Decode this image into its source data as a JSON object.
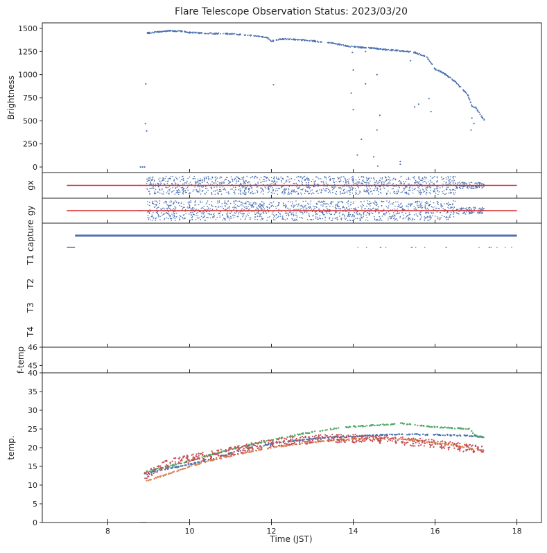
{
  "title": "Flare Telescope Observation Status: 2023/03/20",
  "colors": {
    "blue": "#4c72b0",
    "orange": "#dd8452",
    "green": "#55a868",
    "red": "#c44e52",
    "redline": "#d62728"
  },
  "chart_data": {
    "type": "scatter",
    "xlabel": "Time (JST)",
    "xlim": [
      6.4,
      18.6
    ],
    "xticks": [
      8,
      10,
      12,
      14,
      16,
      18
    ],
    "panels": [
      {
        "id": "brightness",
        "ylabel": "Brightness",
        "ylim": [
          -60,
          1560
        ],
        "yticks": [
          0,
          250,
          500,
          750,
          1000,
          1250,
          1500
        ],
        "series": [
          {
            "color": "blue",
            "points": [
              [
                8.8,
                0
              ],
              [
                8.85,
                0
              ],
              [
                8.9,
                0
              ],
              [
                8.92,
                470
              ],
              [
                8.95,
                390
              ],
              [
                8.93,
                900
              ],
              [
                8.97,
                1450
              ],
              [
                9.2,
                1460
              ],
              [
                9.5,
                1475
              ],
              [
                9.8,
                1470
              ],
              [
                10.0,
                1455
              ],
              [
                10.3,
                1450
              ],
              [
                10.6,
                1445
              ],
              [
                11.0,
                1440
              ],
              [
                11.5,
                1425
              ],
              [
                11.9,
                1400
              ],
              [
                12.0,
                1360
              ],
              [
                12.2,
                1385
              ],
              [
                12.6,
                1380
              ],
              [
                13.0,
                1365
              ],
              [
                13.5,
                1340
              ],
              [
                13.9,
                1305
              ],
              [
                14.2,
                1295
              ],
              [
                14.5,
                1285
              ],
              [
                14.8,
                1270
              ],
              [
                15.2,
                1255
              ],
              [
                15.5,
                1240
              ],
              [
                15.8,
                1190
              ],
              [
                16.0,
                1060
              ],
              [
                16.2,
                1020
              ],
              [
                16.5,
                920
              ],
              [
                16.8,
                780
              ],
              [
                16.9,
                660
              ],
              [
                17.0,
                640
              ],
              [
                17.1,
                570
              ],
              [
                17.2,
                510
              ],
              [
                12.05,
                890
              ],
              [
                14.0,
                1050
              ],
              [
                14.1,
                130
              ],
              [
                14.2,
                300
              ],
              [
                14.3,
                900
              ],
              [
                14.5,
                110
              ],
              [
                14.58,
                1000
              ],
              [
                14.6,
                10
              ],
              [
                14.65,
                560
              ],
              [
                14.58,
                400
              ],
              [
                15.15,
                30
              ],
              [
                15.15,
                60
              ],
              [
                15.4,
                1150
              ],
              [
                15.5,
                650
              ],
              [
                15.6,
                680
              ],
              [
                15.85,
                740
              ],
              [
                15.9,
                600
              ],
              [
                16.9,
                530
              ],
              [
                16.95,
                470
              ],
              [
                16.88,
                400
              ],
              [
                14.0,
                620
              ],
              [
                13.95,
                800
              ],
              [
                13.98,
                1240
              ],
              [
                14.3,
                1250
              ]
            ]
          }
        ]
      },
      {
        "id": "gx",
        "ylabel": "gx",
        "ylim": [
          -1.2,
          1.2
        ],
        "series": [
          {
            "color": "blue",
            "x_range": [
              8.95,
              17.2
            ],
            "spread": 0.85
          },
          {
            "color": "redline",
            "line": [
              [
                7.0,
                0
              ],
              [
                18.0,
                0
              ]
            ]
          }
        ]
      },
      {
        "id": "gy",
        "ylabel": "gy",
        "ylim": [
          -1.2,
          1.2
        ],
        "series": [
          {
            "color": "blue",
            "x_range": [
              8.95,
              17.2
            ],
            "spread": 0.95
          },
          {
            "color": "redline",
            "line": [
              [
                7.0,
                0
              ],
              [
                18.0,
                0
              ]
            ]
          }
        ]
      },
      {
        "id": "status",
        "rows": [
          "capture",
          "T1",
          "T2",
          "T3",
          "T4"
        ],
        "series": [
          {
            "color": "blue",
            "row": "capture",
            "line": [
              [
                7.2,
                18.0
              ]
            ]
          },
          {
            "color": "blue",
            "row": "capture_low",
            "line": [
              [
                7.0,
                7.2
              ]
            ]
          }
        ]
      },
      {
        "id": "ftemp",
        "ylabel": "f-temp",
        "ylim": [
          44.6,
          46.0
        ],
        "yticks": [
          45,
          46
        ]
      },
      {
        "id": "temp",
        "ylabel": "temp.",
        "ylim": [
          0,
          40
        ],
        "yticks": [
          0,
          5,
          10,
          15,
          20,
          25,
          30,
          35,
          40
        ],
        "series": [
          {
            "color": "blue",
            "points": [
              [
                8.9,
                13
              ],
              [
                9.5,
                14.5
              ],
              [
                10,
                15.5
              ],
              [
                10.5,
                16.8
              ],
              [
                11,
                18.5
              ],
              [
                11.5,
                20
              ],
              [
                12,
                21
              ],
              [
                12.5,
                21.8
              ],
              [
                13,
                22.3
              ],
              [
                13.5,
                22.8
              ],
              [
                14,
                23
              ],
              [
                14.5,
                23.3
              ],
              [
                15,
                23.5
              ],
              [
                15.5,
                23.5
              ],
              [
                16,
                23.5
              ],
              [
                16.5,
                23.3
              ],
              [
                17,
                23.1
              ],
              [
                17.2,
                22.8
              ]
            ]
          },
          {
            "color": "orange",
            "points": [
              [
                8.9,
                11
              ],
              [
                9.5,
                13
              ],
              [
                10,
                15
              ],
              [
                10.5,
                16.5
              ],
              [
                11,
                17.8
              ],
              [
                11.5,
                19
              ],
              [
                12,
                20
              ],
              [
                12.5,
                20.8
              ],
              [
                13,
                21.5
              ],
              [
                13.5,
                22
              ],
              [
                14,
                22.3
              ],
              [
                14.5,
                22.5
              ],
              [
                15,
                22.5
              ],
              [
                15.5,
                22
              ],
              [
                16,
                21.3
              ],
              [
                16.5,
                20.5
              ],
              [
                17,
                19.5
              ],
              [
                17.2,
                19.3
              ]
            ]
          },
          {
            "color": "green",
            "points": [
              [
                8.9,
                13.5
              ],
              [
                9.5,
                15
              ],
              [
                10,
                16.5
              ],
              [
                10.5,
                18
              ],
              [
                11,
                19.5
              ],
              [
                11.5,
                20.8
              ],
              [
                12,
                22
              ],
              [
                12.5,
                23.2
              ],
              [
                13,
                24.2
              ],
              [
                13.5,
                25
              ],
              [
                14,
                25.6
              ],
              [
                14.5,
                26
              ],
              [
                15,
                26.3
              ],
              [
                15.2,
                26.5
              ],
              [
                15.5,
                26
              ],
              [
                16,
                25.5
              ],
              [
                16.5,
                25.2
              ],
              [
                16.85,
                25
              ],
              [
                17,
                23
              ],
              [
                17.2,
                22.8
              ]
            ]
          },
          {
            "color": "red",
            "noisy": true,
            "points": [
              [
                8.9,
                12.5
              ],
              [
                9.5,
                16
              ],
              [
                10,
                17
              ],
              [
                10.5,
                18
              ],
              [
                11,
                19
              ],
              [
                11.5,
                20.2
              ],
              [
                12,
                21.2
              ],
              [
                12.5,
                21.8
              ],
              [
                13,
                22.2
              ],
              [
                13.5,
                22.5
              ],
              [
                14,
                22.5
              ],
              [
                14.5,
                22.3
              ],
              [
                15,
                22
              ],
              [
                15.5,
                21.5
              ],
              [
                16,
                21
              ],
              [
                16.5,
                20.3
              ],
              [
                17,
                19.6
              ],
              [
                17.2,
                19.2
              ]
            ]
          }
        ]
      }
    ]
  }
}
